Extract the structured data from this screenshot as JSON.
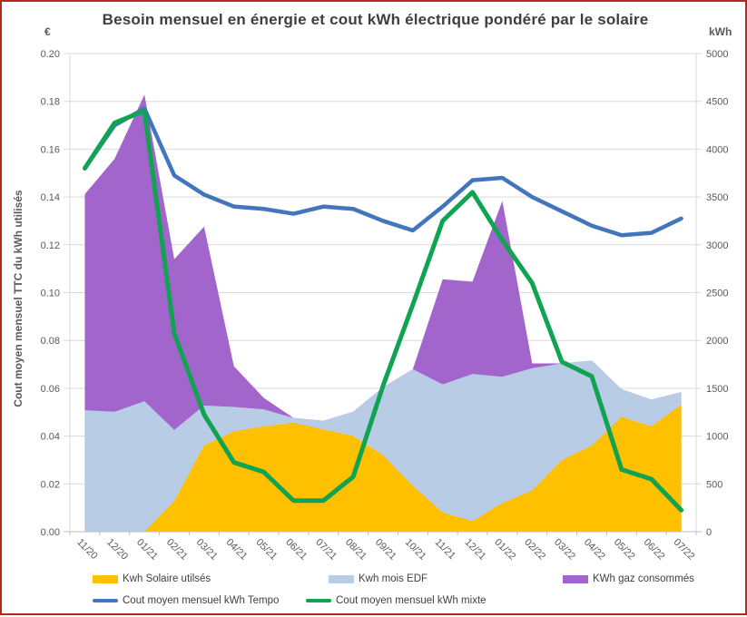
{
  "title": "Besoin mensuel en énergie et cout kWh électrique pondéré par le solaire",
  "left_axis_unit": "€",
  "right_axis_unit": "kWh",
  "y_axis_title": "Cout moyen mensuel TTC du kWh utilisés",
  "colors": {
    "solar": "#FFC000",
    "edf": "#B8CCE6",
    "gaz": "#A265CB",
    "tempo_line": "#4375BD",
    "mixte_line": "#10A351",
    "gridline": "#D9D9D9",
    "axis_line": "#BFBFBF",
    "tick_text": "#595959",
    "frame_border": "#B02A1E"
  },
  "legend": [
    {
      "label": "Kwh Solaire utilsés",
      "type": "area",
      "color": "#FFC000"
    },
    {
      "label": "Kwh mois EDF",
      "type": "area",
      "color": "#B8CCE6"
    },
    {
      "label": "KWh gaz consommés",
      "type": "area",
      "color": "#A265CB"
    },
    {
      "label": "Cout moyen mensuel kWh Tempo",
      "type": "line",
      "color": "#4375BD"
    },
    {
      "label": "Cout moyen mensuel kWh mixte",
      "type": "line",
      "color": "#10A351"
    }
  ],
  "chart_data": {
    "type": "area+line combo, dual axis",
    "categories": [
      "11/20",
      "12/20",
      "01/21",
      "02/21",
      "03/21",
      "04/21",
      "05/21",
      "06/21",
      "07/21",
      "08/21",
      "09/21",
      "10/21",
      "11/21",
      "12/21",
      "01/22",
      "02/22",
      "03/22",
      "04/22",
      "05/22",
      "06/22",
      "07/22"
    ],
    "left_axis": {
      "label": "€",
      "min": 0,
      "max": 0.2,
      "step": 0.02
    },
    "right_axis": {
      "label": "kWh",
      "min": 0,
      "max": 5000,
      "step": 500
    },
    "grid": "horizontal gridlines at every 0.02 € / 500 kWh",
    "legend_position": "bottom, two rows",
    "series": [
      {
        "name": "Kwh Solaire utilsés",
        "type": "area-stacked",
        "axis": "right",
        "color": "#FFC000",
        "values": [
          0,
          0,
          0,
          320,
          900,
          1050,
          1100,
          1140,
          1070,
          1000,
          800,
          480,
          200,
          110,
          300,
          430,
          750,
          900,
          1200,
          1100,
          1330
        ]
      },
      {
        "name": "Kwh mois EDF",
        "type": "area-stacked",
        "axis": "right",
        "color": "#B8CCE6",
        "values": [
          1270,
          1255,
          1365,
          745,
          420,
          255,
          180,
          50,
          90,
          255,
          710,
          1220,
          1340,
          1540,
          1320,
          1280,
          1010,
          890,
          290,
          280,
          130
        ]
      },
      {
        "name": "KWh gaz consommés",
        "type": "area-stacked",
        "axis": "right",
        "color": "#A265CB",
        "values": [
          2260,
          2645,
          3205,
          1785,
          1870,
          425,
          120,
          0,
          0,
          0,
          0,
          0,
          1100,
          965,
          1840,
          50,
          0,
          0,
          0,
          0,
          0
        ]
      },
      {
        "name": "Cout moyen mensuel kWh Tempo",
        "type": "line",
        "axis": "left",
        "color": "#4375BD",
        "values": [
          0.152,
          0.17,
          0.177,
          0.149,
          0.141,
          0.136,
          0.135,
          0.133,
          0.136,
          0.135,
          0.13,
          0.126,
          0.136,
          0.147,
          0.148,
          0.14,
          0.134,
          0.128,
          0.124,
          0.125,
          0.131
        ]
      },
      {
        "name": "Cout moyen mensuel kWh mixte",
        "type": "line",
        "axis": "left",
        "color": "#10A351",
        "values": [
          0.152,
          0.171,
          0.176,
          0.083,
          0.049,
          0.029,
          0.025,
          0.013,
          0.013,
          0.023,
          0.061,
          0.095,
          0.13,
          0.142,
          0.122,
          0.104,
          0.071,
          0.065,
          0.026,
          0.022,
          0.009
        ]
      }
    ]
  }
}
